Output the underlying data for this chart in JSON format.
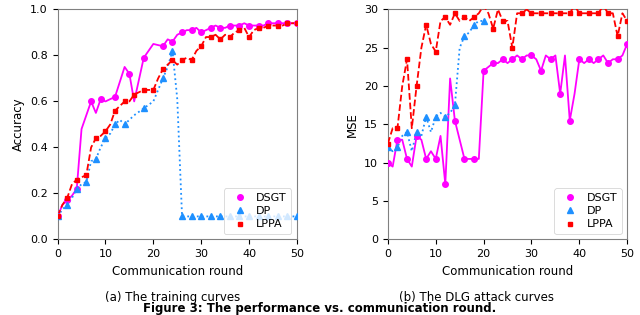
{
  "left_chart": {
    "xlabel": "Communication round",
    "ylabel": "Accuracy",
    "ylim": [
      0,
      1.0
    ],
    "xlim": [
      0,
      50
    ],
    "xticks": [
      0,
      10,
      20,
      30,
      40,
      50
    ],
    "yticks": [
      0,
      0.2,
      0.4,
      0.6,
      0.8,
      1.0
    ],
    "dsgt_x": [
      0,
      1,
      2,
      3,
      4,
      5,
      7,
      8,
      9,
      10,
      12,
      14,
      15,
      16,
      18,
      20,
      22,
      23,
      24,
      25,
      26,
      27,
      28,
      29,
      30,
      31,
      32,
      33,
      34,
      35,
      36,
      37,
      38,
      39,
      40,
      41,
      42,
      43,
      44,
      45,
      46,
      47,
      48,
      49,
      50
    ],
    "dsgt_y": [
      0.1,
      0.15,
      0.17,
      0.19,
      0.22,
      0.48,
      0.6,
      0.55,
      0.61,
      0.6,
      0.62,
      0.75,
      0.72,
      0.6,
      0.79,
      0.85,
      0.84,
      0.87,
      0.86,
      0.89,
      0.9,
      0.91,
      0.91,
      0.92,
      0.9,
      0.91,
      0.92,
      0.93,
      0.92,
      0.92,
      0.93,
      0.93,
      0.93,
      0.94,
      0.93,
      0.93,
      0.93,
      0.93,
      0.94,
      0.94,
      0.94,
      0.94,
      0.94,
      0.94,
      0.94
    ],
    "dp_x": [
      0,
      1,
      2,
      3,
      4,
      5,
      6,
      7,
      8,
      9,
      10,
      11,
      12,
      13,
      14,
      16,
      18,
      20,
      22,
      23,
      24,
      25,
      26,
      27,
      28,
      29,
      30,
      31,
      32,
      33,
      34,
      35,
      36,
      37,
      38,
      39,
      40,
      41,
      42,
      43,
      44,
      45,
      46,
      47,
      48,
      49,
      50
    ],
    "dp_y": [
      0.1,
      0.13,
      0.15,
      0.18,
      0.22,
      0.24,
      0.25,
      0.34,
      0.35,
      0.4,
      0.44,
      0.46,
      0.5,
      0.52,
      0.5,
      0.54,
      0.57,
      0.6,
      0.7,
      0.75,
      0.82,
      0.61,
      0.1,
      0.1,
      0.1,
      0.1,
      0.1,
      0.1,
      0.1,
      0.1,
      0.1,
      0.1,
      0.1,
      0.1,
      0.1,
      0.1,
      0.1,
      0.1,
      0.1,
      0.1,
      0.1,
      0.1,
      0.1,
      0.1,
      0.1,
      0.1,
      0.1
    ],
    "lppa_x": [
      0,
      1,
      2,
      3,
      4,
      5,
      6,
      7,
      8,
      9,
      10,
      11,
      12,
      13,
      14,
      15,
      16,
      17,
      18,
      19,
      20,
      21,
      22,
      23,
      24,
      25,
      26,
      27,
      28,
      29,
      30,
      31,
      32,
      33,
      34,
      35,
      36,
      37,
      38,
      39,
      40,
      41,
      42,
      43,
      44,
      45,
      46,
      47,
      48,
      49,
      50
    ],
    "lppa_y": [
      0.1,
      0.15,
      0.18,
      0.24,
      0.26,
      0.27,
      0.28,
      0.4,
      0.44,
      0.45,
      0.47,
      0.5,
      0.56,
      0.58,
      0.6,
      0.6,
      0.63,
      0.64,
      0.65,
      0.65,
      0.65,
      0.7,
      0.74,
      0.76,
      0.78,
      0.76,
      0.78,
      0.79,
      0.78,
      0.82,
      0.84,
      0.88,
      0.88,
      0.89,
      0.87,
      0.89,
      0.88,
      0.9,
      0.91,
      0.92,
      0.88,
      0.91,
      0.92,
      0.92,
      0.93,
      0.93,
      0.93,
      0.93,
      0.94,
      0.94,
      0.94
    ]
  },
  "right_chart": {
    "xlabel": "Communication round",
    "ylabel": "MSE",
    "ylim": [
      0,
      30
    ],
    "xlim": [
      0,
      50
    ],
    "xticks": [
      0,
      10,
      20,
      30,
      40,
      50
    ],
    "yticks": [
      0,
      5,
      10,
      15,
      20,
      25,
      30
    ],
    "dsgt_x": [
      0,
      1,
      2,
      3,
      4,
      5,
      6,
      7,
      8,
      9,
      10,
      11,
      12,
      13,
      14,
      15,
      16,
      17,
      18,
      19,
      20,
      21,
      22,
      23,
      24,
      25,
      26,
      27,
      28,
      29,
      30,
      31,
      32,
      33,
      34,
      35,
      36,
      37,
      38,
      39,
      40,
      41,
      42,
      43,
      44,
      45,
      46,
      47,
      48,
      49,
      50
    ],
    "dsgt_y": [
      10.0,
      9.5,
      13.0,
      13.0,
      10.5,
      9.5,
      13.5,
      13.0,
      10.5,
      11.5,
      10.5,
      13.5,
      7.2,
      21.0,
      15.5,
      13.0,
      10.5,
      10.5,
      10.5,
      10.5,
      22.0,
      22.5,
      23.0,
      23.0,
      23.5,
      23.0,
      23.5,
      24.0,
      23.5,
      24.0,
      24.0,
      23.5,
      22.0,
      24.0,
      23.5,
      24.0,
      19.0,
      24.0,
      15.5,
      19.0,
      23.5,
      23.0,
      23.5,
      23.0,
      23.5,
      24.0,
      23.0,
      23.5,
      23.5,
      24.0,
      25.5
    ],
    "dp_x": [
      0,
      1,
      2,
      3,
      4,
      5,
      6,
      7,
      8,
      9,
      10,
      11,
      12,
      13,
      14,
      15,
      16,
      17,
      18,
      19,
      20
    ],
    "dp_y": [
      12.0,
      11.5,
      12.0,
      13.5,
      14.0,
      11.5,
      14.0,
      13.5,
      16.0,
      14.0,
      16.0,
      16.5,
      16.0,
      16.5,
      17.5,
      25.0,
      26.5,
      27.0,
      28.0,
      28.5,
      28.5
    ],
    "lppa_x": [
      0,
      1,
      2,
      3,
      4,
      5,
      6,
      7,
      8,
      9,
      10,
      11,
      12,
      13,
      14,
      15,
      16,
      17,
      18,
      19,
      20,
      21,
      22,
      23,
      24,
      25,
      26,
      27,
      28,
      29,
      30,
      31,
      32,
      33,
      34,
      35,
      36,
      37,
      38,
      39,
      40,
      41,
      42,
      43,
      44,
      45,
      46,
      47,
      48,
      49,
      50
    ],
    "lppa_y": [
      12.5,
      14.5,
      14.5,
      20.0,
      23.5,
      14.5,
      20.0,
      25.0,
      28.0,
      25.5,
      24.5,
      28.5,
      29.0,
      28.0,
      29.5,
      28.5,
      29.0,
      28.5,
      29.0,
      29.5,
      30.5,
      29.5,
      27.5,
      30.0,
      28.5,
      28.5,
      25.0,
      29.5,
      29.5,
      30.0,
      29.5,
      29.5,
      29.5,
      29.5,
      29.5,
      29.5,
      29.5,
      29.5,
      29.5,
      30.5,
      29.5,
      29.5,
      29.5,
      29.5,
      29.5,
      30.5,
      29.5,
      29.5,
      26.5,
      29.5,
      28.5
    ]
  },
  "colors": {
    "dsgt": "#FF00FF",
    "dp": "#1E90FF",
    "lppa": "#FF0000"
  },
  "subcaption_left": "(a) The training curves",
  "subcaption_right": "(b) The DLG attack curves",
  "caption": "Figure 3: The performance vs. communication round."
}
